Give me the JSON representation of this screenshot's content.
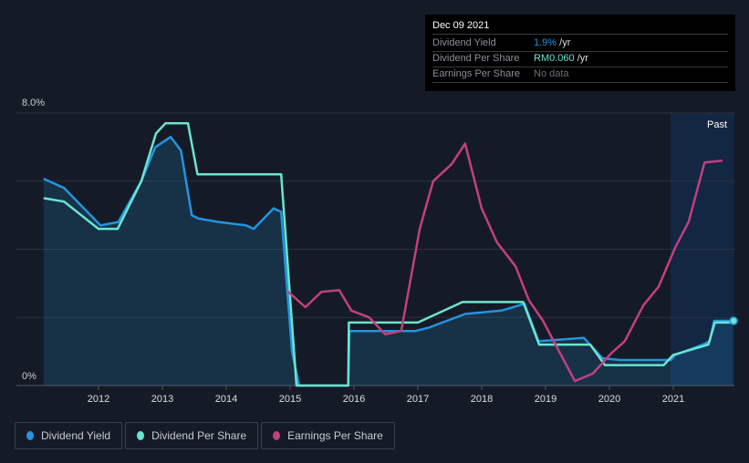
{
  "tooltip": {
    "date": "Dec 09 2021",
    "rows": [
      {
        "label": "Dividend Yield",
        "value": "1.9%",
        "unit": " /yr",
        "color": "#2394df"
      },
      {
        "label": "Dividend Per Share",
        "value": "RM0.060",
        "unit": " /yr",
        "color": "#6ae5d1"
      },
      {
        "label": "Earnings Per Share",
        "value": "No data",
        "unit": "",
        "color": "#6b6f76"
      }
    ]
  },
  "past_label": "Past",
  "chart_data": {
    "type": "line",
    "ylabel_top": "8.0%",
    "ylabel_bottom": "0%",
    "ylim": [
      0,
      8
    ],
    "xlim": [
      2011.0,
      2021.95
    ],
    "x_ticks": [
      "2012",
      "2013",
      "2014",
      "2015",
      "2016",
      "2017",
      "2018",
      "2019",
      "2020",
      "2021"
    ],
    "series": [
      {
        "name": "Dividend Yield",
        "color": "#2394df",
        "fill": true,
        "points": [
          [
            2011.14,
            6.07
          ],
          [
            2011.46,
            5.8
          ],
          [
            2012.03,
            4.7
          ],
          [
            2012.31,
            4.8
          ],
          [
            2012.67,
            6.0
          ],
          [
            2012.89,
            7.0
          ],
          [
            2013.13,
            7.3
          ],
          [
            2013.29,
            6.9
          ],
          [
            2013.46,
            5.0
          ],
          [
            2013.57,
            4.9
          ],
          [
            2013.89,
            4.8
          ],
          [
            2014.31,
            4.7
          ],
          [
            2014.43,
            4.6
          ],
          [
            2014.74,
            5.2
          ],
          [
            2014.86,
            5.1
          ],
          [
            2015.03,
            1.0
          ],
          [
            2015.14,
            0
          ],
          [
            2015.91,
            0
          ],
          [
            2015.93,
            1.6
          ],
          [
            2016.96,
            1.6
          ],
          [
            2017.17,
            1.7
          ],
          [
            2017.74,
            2.1
          ],
          [
            2018.31,
            2.2
          ],
          [
            2018.67,
            2.4
          ],
          [
            2018.89,
            1.3
          ],
          [
            2019.6,
            1.4
          ],
          [
            2019.89,
            0.8
          ],
          [
            2020.17,
            0.75
          ],
          [
            2020.96,
            0.75
          ],
          [
            2021.03,
            0.9
          ],
          [
            2021.46,
            1.2
          ],
          [
            2021.57,
            1.3
          ],
          [
            2021.64,
            1.9
          ],
          [
            2021.93,
            1.9
          ]
        ]
      },
      {
        "name": "Dividend Per Share",
        "color": "#6ae5d1",
        "fill": false,
        "points": [
          [
            2011.14,
            5.5
          ],
          [
            2011.46,
            5.4
          ],
          [
            2012.0,
            4.6
          ],
          [
            2012.3,
            4.6
          ],
          [
            2012.67,
            6.0
          ],
          [
            2012.9,
            7.4
          ],
          [
            2013.05,
            7.7
          ],
          [
            2013.4,
            7.7
          ],
          [
            2013.55,
            6.2
          ],
          [
            2014.86,
            6.2
          ],
          [
            2015.1,
            0
          ],
          [
            2015.91,
            0
          ],
          [
            2015.92,
            1.85
          ],
          [
            2017.0,
            1.85
          ],
          [
            2017.7,
            2.45
          ],
          [
            2018.65,
            2.45
          ],
          [
            2018.9,
            1.2
          ],
          [
            2019.7,
            1.2
          ],
          [
            2019.93,
            0.6
          ],
          [
            2020.85,
            0.6
          ],
          [
            2021.0,
            0.9
          ],
          [
            2021.55,
            1.2
          ],
          [
            2021.65,
            1.85
          ],
          [
            2021.93,
            1.85
          ]
        ]
      },
      {
        "name": "Earnings Per Share",
        "color": "#c2407f",
        "fill": false,
        "points": [
          [
            2014.97,
            2.75
          ],
          [
            2015.24,
            2.3
          ],
          [
            2015.49,
            2.75
          ],
          [
            2015.77,
            2.8
          ],
          [
            2015.96,
            2.2
          ],
          [
            2016.24,
            2.0
          ],
          [
            2016.49,
            1.5
          ],
          [
            2016.74,
            1.6
          ],
          [
            2017.03,
            4.6
          ],
          [
            2017.24,
            6.0
          ],
          [
            2017.53,
            6.5
          ],
          [
            2017.74,
            7.1
          ],
          [
            2018.0,
            5.2
          ],
          [
            2018.24,
            4.2
          ],
          [
            2018.53,
            3.5
          ],
          [
            2018.74,
            2.5
          ],
          [
            2018.96,
            1.9
          ],
          [
            2019.17,
            1.15
          ],
          [
            2019.46,
            0.13
          ],
          [
            2019.74,
            0.35
          ],
          [
            2020.03,
            0.95
          ],
          [
            2020.24,
            1.3
          ],
          [
            2020.53,
            2.35
          ],
          [
            2020.77,
            2.9
          ],
          [
            2021.03,
            4.05
          ],
          [
            2021.24,
            4.8
          ],
          [
            2021.49,
            6.55
          ],
          [
            2021.77,
            6.6
          ]
        ]
      }
    ]
  }
}
